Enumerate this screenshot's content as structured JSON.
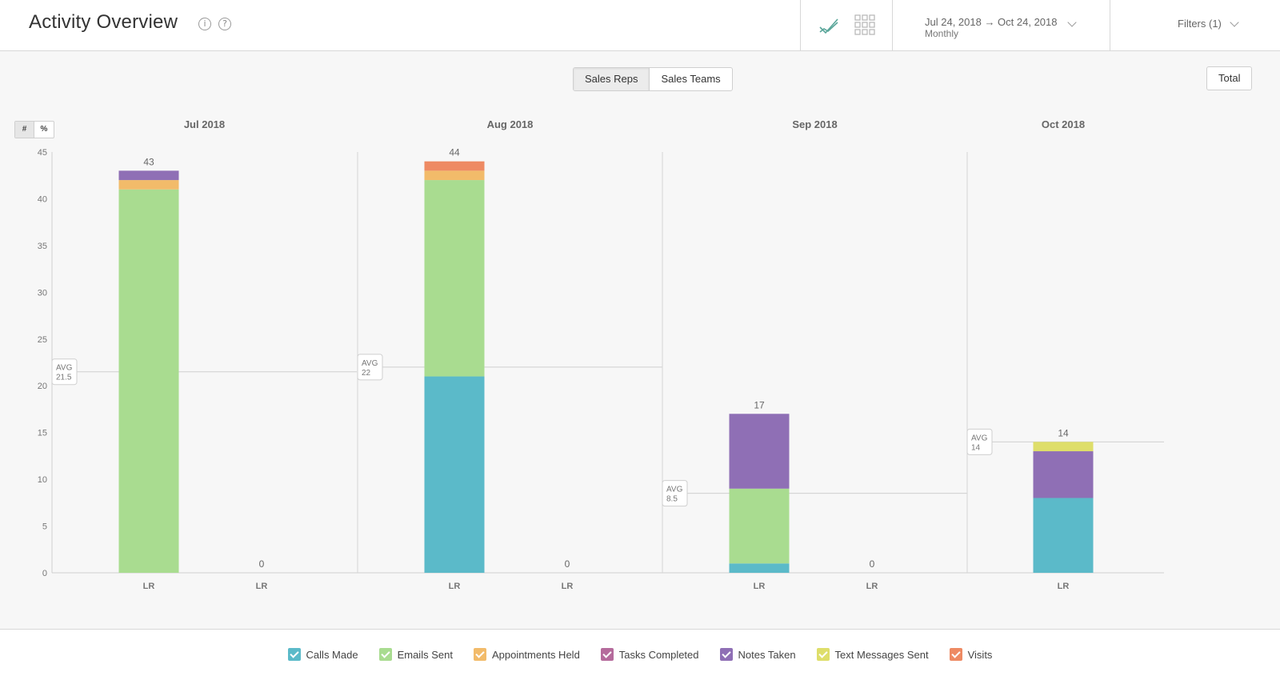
{
  "header": {
    "title": "Activity Overview",
    "info_glyph": "i",
    "help_glyph": "?",
    "date_range": "Jul 24, 2018 → Oct 24, 2018",
    "interval": "Monthly",
    "filters_label": "Filters (1)"
  },
  "toolbar": {
    "sales_reps_label": "Sales Reps",
    "sales_teams_label": "Sales Teams",
    "total_label": "Total",
    "count_label": "#",
    "percent_label": "%"
  },
  "chart_data": {
    "type": "bar",
    "stacked": true,
    "ylim": [
      0,
      45
    ],
    "yticks": [
      0,
      5,
      10,
      15,
      20,
      25,
      30,
      35,
      40,
      45
    ],
    "avg_label": "AVG",
    "groups": [
      {
        "period": "Jul 2018",
        "avg": "21.5",
        "avg_value": 21.5,
        "bars": [
          {
            "label": "LR",
            "total": 43,
            "segments": [
              0,
              41,
              1,
              0,
              1,
              0,
              0
            ]
          },
          {
            "label": "LR",
            "total": 0,
            "segments": [
              0,
              0,
              0,
              0,
              0,
              0,
              0
            ]
          }
        ]
      },
      {
        "period": "Aug 2018",
        "avg": "22",
        "avg_value": 22,
        "bars": [
          {
            "label": "LR",
            "total": 44,
            "segments": [
              21,
              21,
              1,
              0,
              0,
              0,
              1
            ]
          },
          {
            "label": "LR",
            "total": 0,
            "segments": [
              0,
              0,
              0,
              0,
              0,
              0,
              0
            ]
          }
        ]
      },
      {
        "period": "Sep 2018",
        "avg": "8.5",
        "avg_value": 8.5,
        "bars": [
          {
            "label": "LR",
            "total": 17,
            "segments": [
              1,
              8,
              0,
              0,
              8,
              0,
              0
            ]
          },
          {
            "label": "LR",
            "total": 0,
            "segments": [
              0,
              0,
              0,
              0,
              0,
              0,
              0
            ]
          }
        ]
      },
      {
        "period": "Oct 2018",
        "avg": "14",
        "avg_value": 14,
        "bars": [
          {
            "label": "LR",
            "total": 14,
            "segments": [
              8,
              0,
              0,
              0,
              5,
              1,
              0
            ]
          }
        ]
      }
    ],
    "series": [
      {
        "name": "Calls Made",
        "color": "#5bbac9"
      },
      {
        "name": "Emails Sent",
        "color": "#a9dc90"
      },
      {
        "name": "Appointments Held",
        "color": "#f2bb6a"
      },
      {
        "name": "Tasks Completed",
        "color": "#b56b9c"
      },
      {
        "name": "Notes Taken",
        "color": "#8f6fb5"
      },
      {
        "name": "Text Messages Sent",
        "color": "#dede6a"
      },
      {
        "name": "Visits",
        "color": "#ee8a63"
      }
    ]
  }
}
